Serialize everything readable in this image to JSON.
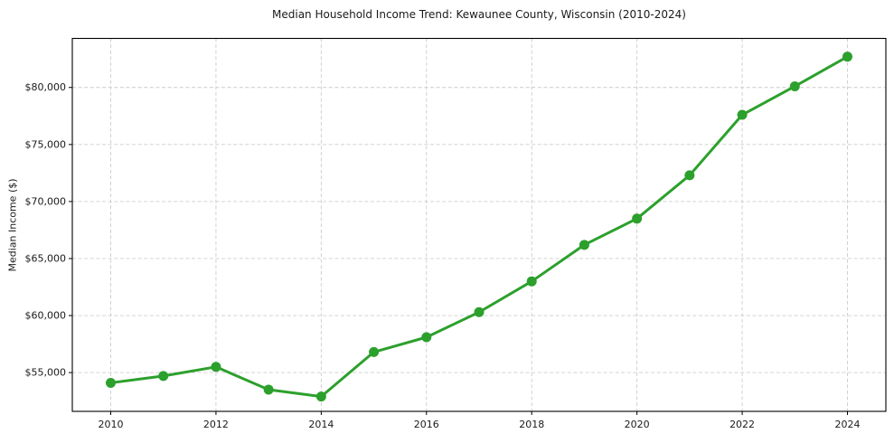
{
  "chart_data": {
    "type": "line",
    "title": "Median Household Income Trend: Kewaunee County, Wisconsin (2010-2024)",
    "xlabel": "",
    "ylabel": "Median Income ($)",
    "x": [
      2010,
      2011,
      2012,
      2013,
      2014,
      2015,
      2016,
      2017,
      2018,
      2019,
      2020,
      2021,
      2022,
      2023,
      2024
    ],
    "values": [
      54100,
      54700,
      55500,
      53500,
      52900,
      56800,
      58100,
      60300,
      63000,
      66200,
      68500,
      72300,
      77600,
      80100,
      82700
    ],
    "xlim": [
      2009.27,
      2024.73
    ],
    "ylim": [
      51600,
      84300
    ],
    "xticks": {
      "values": [
        2010,
        2012,
        2014,
        2016,
        2018,
        2020,
        2022,
        2024
      ],
      "labels": [
        "2010",
        "2012",
        "2014",
        "2016",
        "2018",
        "2020",
        "2022",
        "2024"
      ]
    },
    "yticks": {
      "values": [
        55000,
        60000,
        65000,
        70000,
        75000,
        80000
      ],
      "labels": [
        "$55,000",
        "$60,000",
        "$65,000",
        "$70,000",
        "$75,000",
        "$80,000"
      ]
    },
    "grid": true,
    "grid_line_style": "dashed",
    "legend_position": "none",
    "marker_style": "circle",
    "line_style": "solid",
    "colors": {
      "line": "#2ca02c",
      "marker": "#2ca02c",
      "grid": "#cccccc",
      "axis": "#000000",
      "text": "#1a1a1a",
      "background": "#ffffff"
    }
  }
}
